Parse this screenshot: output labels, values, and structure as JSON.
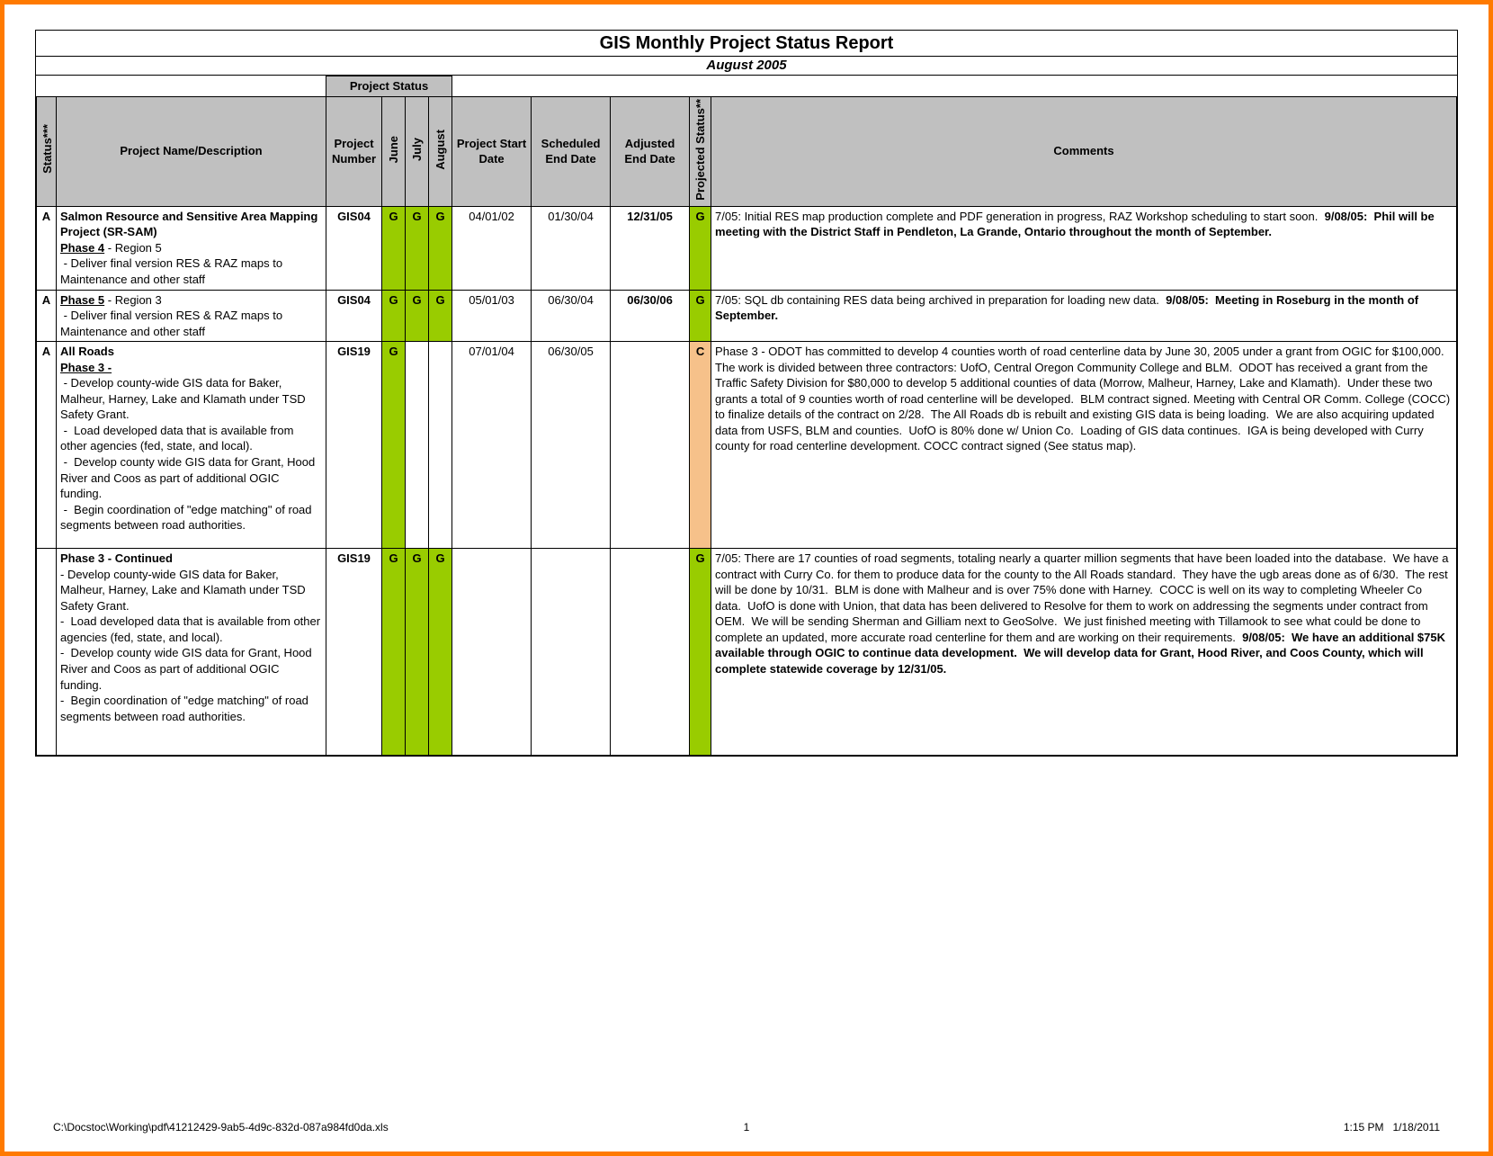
{
  "title": "GIS Monthly Project Status Report",
  "subtitle": "August 2005",
  "group_header": "Project Status",
  "columns": {
    "status": "Status***",
    "desc": "Project Name/Description",
    "number": "Project Number",
    "june": "June",
    "july": "July",
    "august": "August",
    "start": "Project Start Date",
    "sched_end": "Scheduled End Date",
    "adj_end": "Adjusted End Date",
    "proj_status": "Projected Status**",
    "comments": "Comments"
  },
  "colors": {
    "header_bg": "#c0c0c0",
    "green": "#99cc00",
    "orange": "#f6c18a",
    "border": "#000000",
    "frame": "#ff7a00"
  },
  "rows": [
    {
      "status": "A",
      "desc_html": "<span class='bold-text'>Salmon Resource and Sensitive Area Mapping Project (SR-SAM)</span><br><span class='underline-bold'>Phase 4</span> - Region 5<br>&nbsp;- Deliver final version RES & RAZ maps to Maintenance and other staff",
      "number": "GIS04",
      "june": "G",
      "july": "G",
      "august": "G",
      "june_color": "green",
      "july_color": "green",
      "august_color": "green",
      "start": "04/01/02",
      "sched_end": "01/30/04",
      "adj_end": "12/31/05",
      "adj_end_bold": true,
      "proj_status": "G",
      "proj_status_color": "green",
      "comments_html": "7/05: Initial RES map production complete and PDF generation in progress, RAZ Workshop scheduling to start soon. &nbsp;<span class='bold-text'>9/08/05:&nbsp; Phil will be meeting with the District Staff in Pendleton, La Grande, Ontario throughout the month of September.</span>"
    },
    {
      "status": "A",
      "desc_html": "<span class='underline-bold'>Phase 5</span> - Region 3<br>&nbsp;- Deliver final version RES & RAZ maps to Maintenance and other staff",
      "number": "GIS04",
      "june": "G",
      "july": "G",
      "august": "G",
      "june_color": "green",
      "july_color": "green",
      "august_color": "green",
      "start": "05/01/03",
      "sched_end": "06/30/04",
      "adj_end": "06/30/06",
      "adj_end_bold": true,
      "proj_status": "G",
      "proj_status_color": "green",
      "comments_html": "7/05: SQL db containing RES data being archived in preparation for loading new data.&nbsp; <span class='bold-text'>9/08/05:&nbsp; Meeting in Roseburg in the month of September.</span>"
    },
    {
      "status": "A",
      "desc_html": "<span class='bold-text'>All Roads</span><br><span class='underline-bold'>Phase 3 -</span><br>&nbsp;- Develop county-wide GIS data for Baker, Malheur, Harney, Lake and Klamath under TSD Safety Grant.<br>&nbsp;-&nbsp; Load developed data that is available from other agencies (fed, state, and local).<br>&nbsp;-&nbsp; Develop county wide GIS data for Grant, Hood River and Coos as part of additional OGIC funding.<br>&nbsp;-&nbsp; Begin coordination of \"edge matching\" of road segments between road authorities.",
      "number": "GIS19",
      "june": "G",
      "july": "",
      "august": "",
      "june_color": "green",
      "july_color": "",
      "august_color": "",
      "start": "07/01/04",
      "sched_end": "06/30/05",
      "adj_end": "",
      "adj_end_bold": false,
      "proj_status": "C",
      "proj_status_color": "orange",
      "comments_html": "Phase 3 - ODOT has committed to develop 4 counties worth of road centerline data by June 30, 2005 under a grant from OGIC for $100,000.&nbsp; The work is divided between three contractors: UofO, Central Oregon Community College and BLM.&nbsp; ODOT has received a grant from the Traffic Safety Division for $80,000 to develop 5 additional counties of data (Morrow, Malheur, Harney, Lake and Klamath).&nbsp; Under these two grants a total of 9 counties worth of road centerline will be developed.&nbsp; BLM contract signed. Meeting with Central OR Comm. College (COCC) to finalize details of the contract on 2/28.&nbsp; The All Roads db is rebuilt and existing GIS data is being loading.&nbsp; We are also acquiring updated data from USFS, BLM and counties.&nbsp; UofO is 80% done w/ Union Co.&nbsp; Loading of GIS data continues.&nbsp; IGA is being developed with Curry county for road centerline development. COCC contract signed (See status map).",
      "tall": true
    },
    {
      "status": "",
      "desc_html": "<span class='bold-text'>Phase 3 - Continued</span><br>- Develop county-wide GIS data for Baker, Malheur, Harney, Lake and Klamath under TSD Safety Grant.<br>-&nbsp; Load developed data that is available from other agencies (fed, state, and local).<br>-&nbsp; Develop county wide GIS data for Grant, Hood River and Coos as part of additional OGIC funding.<br>-&nbsp; Begin coordination of \"edge matching\" of road segments between road authorities.",
      "number": "GIS19",
      "june": "G",
      "july": "G",
      "august": "G",
      "june_color": "green",
      "july_color": "green",
      "august_color": "green",
      "start": "",
      "sched_end": "",
      "adj_end": "",
      "adj_end_bold": false,
      "proj_status": "G",
      "proj_status_color": "green",
      "comments_html": "7/05: There are 17 counties of road segments, totaling nearly a quarter million segments that have been loaded into the database.&nbsp; We have a contract with Curry Co. for them to produce data for the county to the All Roads standard.&nbsp; They have the ugb areas done as of 6/30.&nbsp; The rest will be done by 10/31.&nbsp; BLM is done with Malheur and is over 75% done with Harney.&nbsp; COCC is well on its way to completing Wheeler Co data.&nbsp; UofO is done with Union, that data has been delivered to Resolve for them to work on addressing the segments under contract from OEM.&nbsp; We will be sending Sherman and Gilliam next to GeoSolve.&nbsp; We just finished meeting with Tillamook to see what could be done to complete an updated, more accurate road centerline for them and are working on their requirements.&nbsp; <span class='bold-text'>9/08/05:&nbsp; We have an additional $75K available through OGIC to continue data development.&nbsp; We will develop data for Grant, Hood River, and Coos County, which will complete statewide coverage by 12/31/05.</span>",
      "tall": true
    }
  ],
  "footer": {
    "path": "C:\\Docstoc\\Working\\pdf\\41212429-9ab5-4d9c-832d-087a984fd0da.xls",
    "page": "1",
    "datetime": "1:15 PM   1/18/2011"
  }
}
